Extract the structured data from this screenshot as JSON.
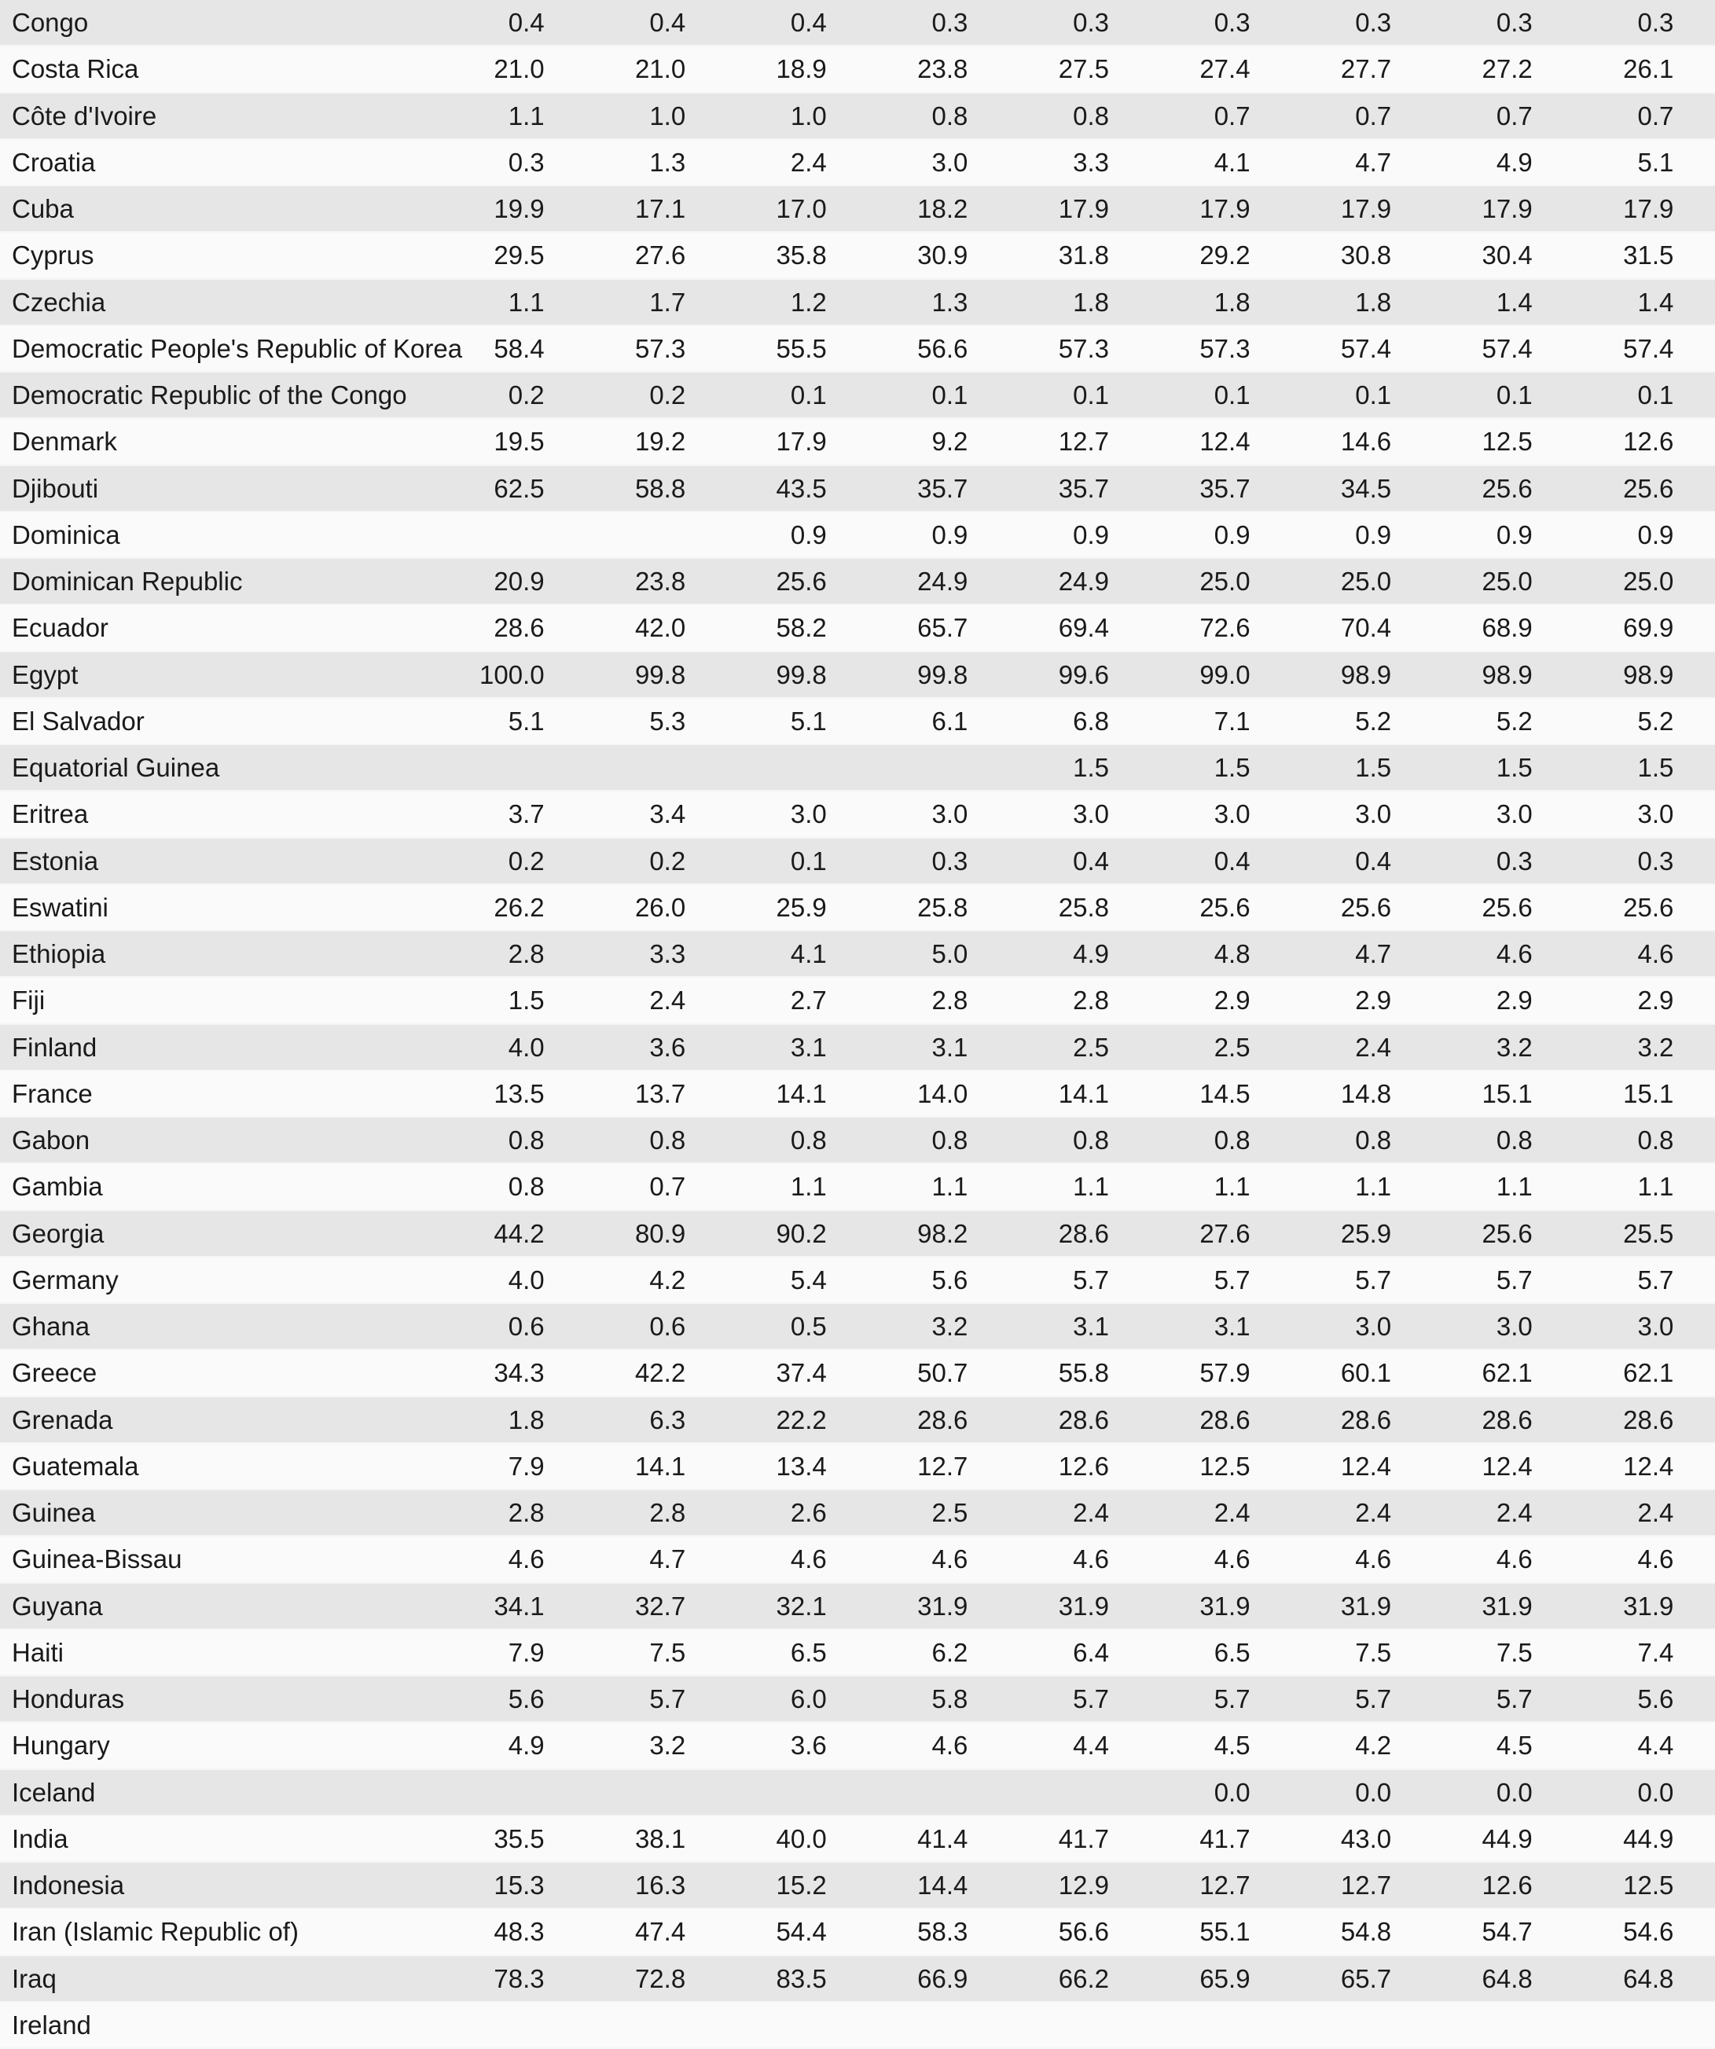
{
  "colors": {
    "row_stripe_dark": "#e6e6e6",
    "row_stripe_light": "#fafafa",
    "text": "#1a1a1a"
  },
  "table": {
    "numeric_column_count": 9,
    "rows": [
      {
        "country": "Congo",
        "values": [
          "0.4",
          "0.4",
          "0.4",
          "0.3",
          "0.3",
          "0.3",
          "0.3",
          "0.3",
          "0.3"
        ]
      },
      {
        "country": "Costa Rica",
        "values": [
          "21.0",
          "21.0",
          "18.9",
          "23.8",
          "27.5",
          "27.4",
          "27.7",
          "27.2",
          "26.1"
        ]
      },
      {
        "country": "Côte d'Ivoire",
        "values": [
          "1.1",
          "1.0",
          "1.0",
          "0.8",
          "0.8",
          "0.7",
          "0.7",
          "0.7",
          "0.7"
        ]
      },
      {
        "country": "Croatia",
        "values": [
          "0.3",
          "1.3",
          "2.4",
          "3.0",
          "3.3",
          "4.1",
          "4.7",
          "4.9",
          "5.1"
        ]
      },
      {
        "country": "Cuba",
        "values": [
          "19.9",
          "17.1",
          "17.0",
          "18.2",
          "17.9",
          "17.9",
          "17.9",
          "17.9",
          "17.9"
        ]
      },
      {
        "country": "Cyprus",
        "values": [
          "29.5",
          "27.6",
          "35.8",
          "30.9",
          "31.8",
          "29.2",
          "30.8",
          "30.4",
          "31.5"
        ]
      },
      {
        "country": "Czechia",
        "values": [
          "1.1",
          "1.7",
          "1.2",
          "1.3",
          "1.8",
          "1.8",
          "1.8",
          "1.4",
          "1.4"
        ]
      },
      {
        "country": "Democratic People's Republic of Korea",
        "values": [
          "58.4",
          "57.3",
          "55.5",
          "56.6",
          "57.3",
          "57.3",
          "57.4",
          "57.4",
          "57.4"
        ]
      },
      {
        "country": "Democratic Republic of the Congo",
        "values": [
          "0.2",
          "0.2",
          "0.1",
          "0.1",
          "0.1",
          "0.1",
          "0.1",
          "0.1",
          "0.1"
        ]
      },
      {
        "country": "Denmark",
        "values": [
          "19.5",
          "19.2",
          "17.9",
          "9.2",
          "12.7",
          "12.4",
          "14.6",
          "12.5",
          "12.6"
        ]
      },
      {
        "country": "Djibouti",
        "values": [
          "62.5",
          "58.8",
          "43.5",
          "35.7",
          "35.7",
          "35.7",
          "34.5",
          "25.6",
          "25.6"
        ]
      },
      {
        "country": "Dominica",
        "values": [
          "",
          "",
          "0.9",
          "0.9",
          "0.9",
          "0.9",
          "0.9",
          "0.9",
          "0.9"
        ]
      },
      {
        "country": "Dominican Republic",
        "values": [
          "20.9",
          "23.8",
          "25.6",
          "24.9",
          "24.9",
          "25.0",
          "25.0",
          "25.0",
          "25.0"
        ]
      },
      {
        "country": "Ecuador",
        "values": [
          "28.6",
          "42.0",
          "58.2",
          "65.7",
          "69.4",
          "72.6",
          "70.4",
          "68.9",
          "69.9"
        ]
      },
      {
        "country": "Egypt",
        "values": [
          "100.0",
          "99.8",
          "99.8",
          "99.8",
          "99.6",
          "99.0",
          "98.9",
          "98.9",
          "98.9"
        ]
      },
      {
        "country": "El Salvador",
        "values": [
          "5.1",
          "5.3",
          "5.1",
          "6.1",
          "6.8",
          "7.1",
          "5.2",
          "5.2",
          "5.2"
        ]
      },
      {
        "country": "Equatorial Guinea",
        "values": [
          "",
          "",
          "",
          "",
          "1.5",
          "1.5",
          "1.5",
          "1.5",
          "1.5"
        ]
      },
      {
        "country": "Eritrea",
        "values": [
          "3.7",
          "3.4",
          "3.0",
          "3.0",
          "3.0",
          "3.0",
          "3.0",
          "3.0",
          "3.0"
        ]
      },
      {
        "country": "Estonia",
        "values": [
          "0.2",
          "0.2",
          "0.1",
          "0.3",
          "0.4",
          "0.4",
          "0.4",
          "0.3",
          "0.3"
        ]
      },
      {
        "country": "Eswatini",
        "values": [
          "26.2",
          "26.0",
          "25.9",
          "25.8",
          "25.8",
          "25.6",
          "25.6",
          "25.6",
          "25.6"
        ]
      },
      {
        "country": "Ethiopia",
        "values": [
          "2.8",
          "3.3",
          "4.1",
          "5.0",
          "4.9",
          "4.8",
          "4.7",
          "4.6",
          "4.6"
        ]
      },
      {
        "country": "Fiji",
        "values": [
          "1.5",
          "2.4",
          "2.7",
          "2.8",
          "2.8",
          "2.9",
          "2.9",
          "2.9",
          "2.9"
        ]
      },
      {
        "country": "Finland",
        "values": [
          "4.0",
          "3.6",
          "3.1",
          "3.1",
          "2.5",
          "2.5",
          "2.4",
          "3.2",
          "3.2"
        ]
      },
      {
        "country": "France",
        "values": [
          "13.5",
          "13.7",
          "14.1",
          "14.0",
          "14.1",
          "14.5",
          "14.8",
          "15.1",
          "15.1"
        ]
      },
      {
        "country": "Gabon",
        "values": [
          "0.8",
          "0.8",
          "0.8",
          "0.8",
          "0.8",
          "0.8",
          "0.8",
          "0.8",
          "0.8"
        ]
      },
      {
        "country": "Gambia",
        "values": [
          "0.8",
          "0.7",
          "1.1",
          "1.1",
          "1.1",
          "1.1",
          "1.1",
          "1.1",
          "1.1"
        ]
      },
      {
        "country": "Georgia",
        "values": [
          "44.2",
          "80.9",
          "90.2",
          "98.2",
          "28.6",
          "27.6",
          "25.9",
          "25.6",
          "25.5"
        ]
      },
      {
        "country": "Germany",
        "values": [
          "4.0",
          "4.2",
          "5.4",
          "5.6",
          "5.7",
          "5.7",
          "5.7",
          "5.7",
          "5.7"
        ]
      },
      {
        "country": "Ghana",
        "values": [
          "0.6",
          "0.6",
          "0.5",
          "3.2",
          "3.1",
          "3.1",
          "3.0",
          "3.0",
          "3.0"
        ]
      },
      {
        "country": "Greece",
        "values": [
          "34.3",
          "42.2",
          "37.4",
          "50.7",
          "55.8",
          "57.9",
          "60.1",
          "62.1",
          "62.1"
        ]
      },
      {
        "country": "Grenada",
        "values": [
          "1.8",
          "6.3",
          "22.2",
          "28.6",
          "28.6",
          "28.6",
          "28.6",
          "28.6",
          "28.6"
        ]
      },
      {
        "country": "Guatemala",
        "values": [
          "7.9",
          "14.1",
          "13.4",
          "12.7",
          "12.6",
          "12.5",
          "12.4",
          "12.4",
          "12.4"
        ]
      },
      {
        "country": "Guinea",
        "values": [
          "2.8",
          "2.8",
          "2.6",
          "2.5",
          "2.4",
          "2.4",
          "2.4",
          "2.4",
          "2.4"
        ]
      },
      {
        "country": "Guinea-Bissau",
        "values": [
          "4.6",
          "4.7",
          "4.6",
          "4.6",
          "4.6",
          "4.6",
          "4.6",
          "4.6",
          "4.6"
        ]
      },
      {
        "country": "Guyana",
        "values": [
          "34.1",
          "32.7",
          "32.1",
          "31.9",
          "31.9",
          "31.9",
          "31.9",
          "31.9",
          "31.9"
        ]
      },
      {
        "country": "Haiti",
        "values": [
          "7.9",
          "7.5",
          "6.5",
          "6.2",
          "6.4",
          "6.5",
          "7.5",
          "7.5",
          "7.4"
        ]
      },
      {
        "country": "Honduras",
        "values": [
          "5.6",
          "5.7",
          "6.0",
          "5.8",
          "5.7",
          "5.7",
          "5.7",
          "5.7",
          "5.6"
        ]
      },
      {
        "country": "Hungary",
        "values": [
          "4.9",
          "3.2",
          "3.6",
          "4.6",
          "4.4",
          "4.5",
          "4.2",
          "4.5",
          "4.4"
        ]
      },
      {
        "country": "Iceland",
        "values": [
          "",
          "",
          "",
          "",
          "",
          "0.0",
          "0.0",
          "0.0",
          "0.0"
        ]
      },
      {
        "country": "India",
        "values": [
          "35.5",
          "38.1",
          "40.0",
          "41.4",
          "41.7",
          "41.7",
          "43.0",
          "44.9",
          "44.9"
        ]
      },
      {
        "country": "Indonesia",
        "values": [
          "15.3",
          "16.3",
          "15.2",
          "14.4",
          "12.9",
          "12.7",
          "12.7",
          "12.6",
          "12.5"
        ]
      },
      {
        "country": "Iran (Islamic Republic of)",
        "values": [
          "48.3",
          "47.4",
          "54.4",
          "58.3",
          "56.6",
          "55.1",
          "54.8",
          "54.7",
          "54.6"
        ]
      },
      {
        "country": "Iraq",
        "values": [
          "78.3",
          "72.8",
          "83.5",
          "66.9",
          "66.2",
          "65.9",
          "65.7",
          "64.8",
          "64.8"
        ]
      },
      {
        "country": "Ireland",
        "values": [
          "",
          "",
          "",
          "",
          "",
          "",
          "",
          "",
          ""
        ]
      }
    ]
  }
}
